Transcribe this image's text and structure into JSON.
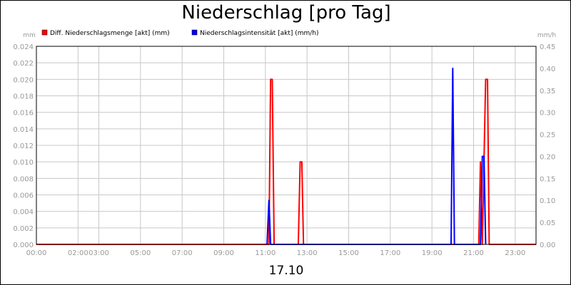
{
  "chart_data": {
    "type": "line",
    "title": "Niederschlag [pro Tag]",
    "date_label": "17.10",
    "y_left": {
      "unit": "mm",
      "range": [
        0,
        0.024
      ],
      "ticks": [
        "0.000",
        "0.002",
        "0.004",
        "0.006",
        "0.008",
        "0.010",
        "0.012",
        "0.014",
        "0.016",
        "0.018",
        "0.020",
        "0.022",
        "0.024"
      ]
    },
    "y_right": {
      "unit": "mm/h",
      "range": [
        0,
        0.45
      ],
      "ticks": [
        "0.00",
        "0.05",
        "0.10",
        "0.15",
        "0.20",
        "0.25",
        "0.30",
        "0.35",
        "0.40",
        "0.45"
      ]
    },
    "x_axis": {
      "range": [
        0,
        24
      ],
      "ticks": [
        {
          "h": 0,
          "label": "00:00"
        },
        {
          "h": 2,
          "label": "02:00"
        },
        {
          "h": 3,
          "label": "03:00"
        },
        {
          "h": 5,
          "label": "05:00"
        },
        {
          "h": 7,
          "label": "07:00"
        },
        {
          "h": 9,
          "label": "09:00"
        },
        {
          "h": 11,
          "label": "11:00"
        },
        {
          "h": 13,
          "label": "13:00"
        },
        {
          "h": 15,
          "label": "15:00"
        },
        {
          "h": 17,
          "label": "17:00"
        },
        {
          "h": 19,
          "label": "19:00"
        },
        {
          "h": 21,
          "label": "21:00"
        },
        {
          "h": 23,
          "label": "23:00"
        }
      ]
    },
    "grid": true,
    "legend": {
      "placement": "top-left",
      "entries": [
        {
          "label": "Diff. Niederschlagsmenge [akt] (mm)",
          "color": "#ff0000"
        },
        {
          "label": "Niederschlagsintensität [akt] (mm/h)",
          "color": "#0000ff"
        }
      ]
    },
    "series": [
      {
        "name": "Diff. Niederschlagsmenge [akt] (mm)",
        "axis": "left",
        "color": "#ff0000",
        "points": [
          [
            0.0,
            0
          ],
          [
            11.17,
            0
          ],
          [
            11.25,
            0.02
          ],
          [
            11.33,
            0.02
          ],
          [
            11.42,
            0
          ],
          [
            12.58,
            0
          ],
          [
            12.67,
            0.01
          ],
          [
            12.75,
            0.01
          ],
          [
            12.83,
            0
          ],
          [
            21.25,
            0
          ],
          [
            21.33,
            0.01
          ],
          [
            21.42,
            0
          ],
          [
            21.5,
            0.01
          ],
          [
            21.58,
            0.02
          ],
          [
            21.67,
            0.02
          ],
          [
            21.75,
            0
          ],
          [
            24.0,
            0
          ]
        ]
      },
      {
        "name": "Niederschlagsintensität [akt] (mm/h)",
        "axis": "right",
        "color": "#0000ff",
        "points": [
          [
            11.08,
            0
          ],
          [
            11.17,
            0.1
          ],
          [
            11.25,
            0
          ],
          [
            19.92,
            0
          ],
          [
            20.0,
            0.4
          ],
          [
            20.08,
            0
          ],
          [
            21.33,
            0
          ],
          [
            21.42,
            0.2
          ],
          [
            21.5,
            0.2
          ],
          [
            21.58,
            0
          ]
        ]
      }
    ]
  }
}
